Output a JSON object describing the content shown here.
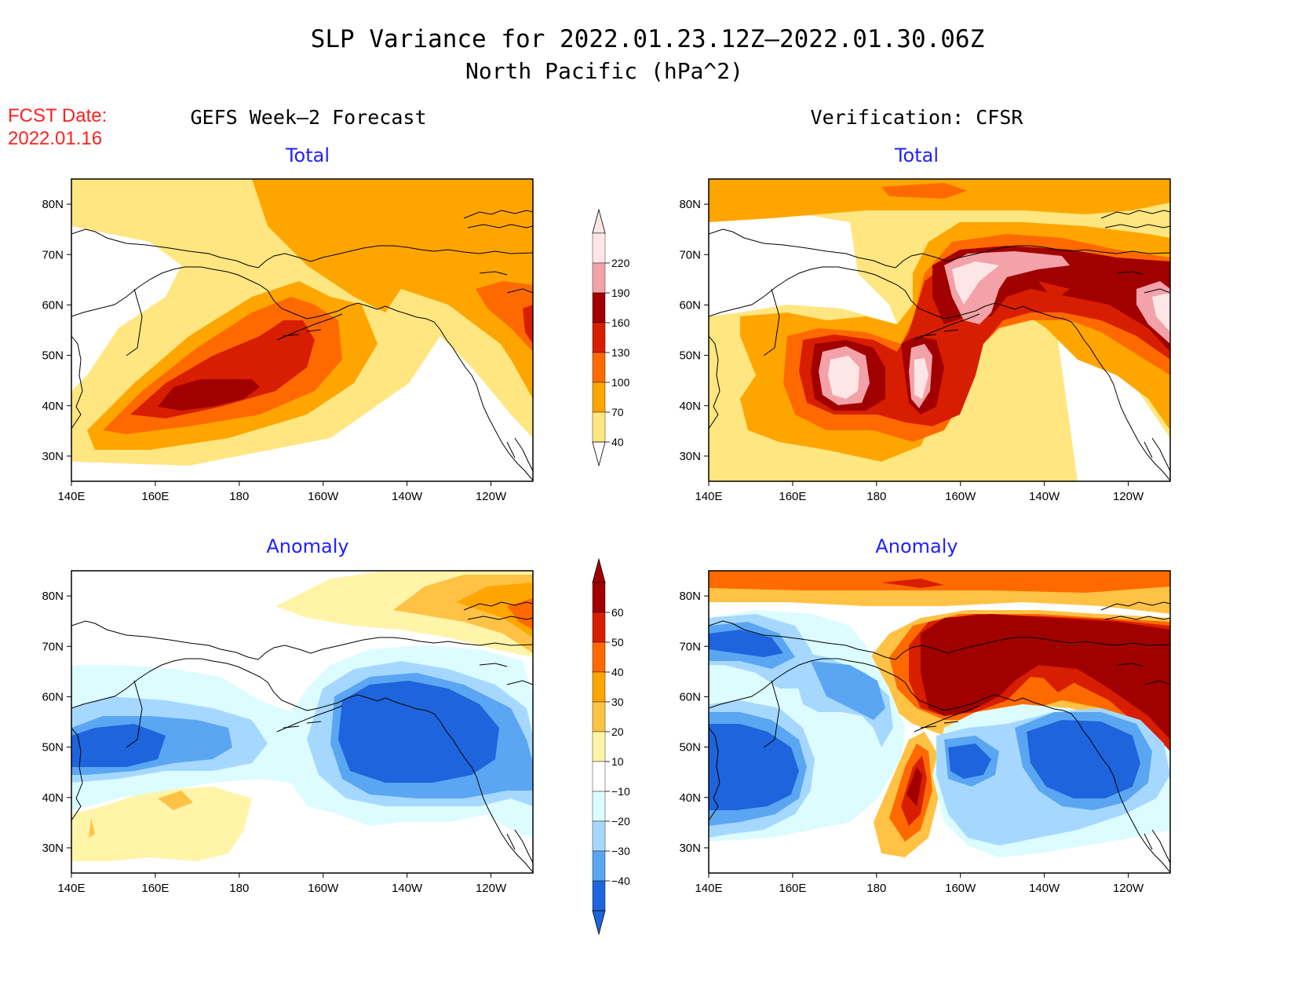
{
  "title": {
    "line1": "SLP Variance for 2022.01.23.12Z–2022.01.30.06Z",
    "line2": "North Pacific (hPa^2)"
  },
  "fcst": {
    "label": "FCST Date:",
    "date": "2022.01.16"
  },
  "columns": {
    "left": "GEFS Week–2 Forecast",
    "right": "Verification: CFSR"
  },
  "subtitles": {
    "total": "Total",
    "anomaly": "Anomaly"
  },
  "axes": {
    "lat_labels": [
      "80N",
      "70N",
      "60N",
      "50N",
      "40N",
      "30N"
    ],
    "lat_values": [
      80,
      70,
      60,
      50,
      40,
      30
    ],
    "lon_labels": [
      "140E",
      "160E",
      "180",
      "160W",
      "140W",
      "120W"
    ],
    "lon_values": [
      140,
      160,
      180,
      200,
      220,
      240
    ],
    "lon_range": [
      140,
      250
    ],
    "lat_range": [
      25,
      85
    ]
  },
  "colorbars": {
    "total": {
      "levels": [
        "220",
        "190",
        "160",
        "130",
        "100",
        "70",
        "40"
      ],
      "colors": [
        "#ffe6e6",
        "#f2a2a8",
        "#a10000",
        "#d81e00",
        "#ff6a00",
        "#ffa500",
        "#ffe680"
      ]
    },
    "anomaly": {
      "levels": [
        "60",
        "50",
        "40",
        "30",
        "20",
        "10",
        "−10",
        "−20",
        "−30",
        "−40"
      ],
      "colors": [
        "#a10000",
        "#d81e00",
        "#ff6a00",
        "#ffa500",
        "#ffc244",
        "#fff4a8",
        "#ffffff",
        "#dcfcff",
        "#a6d8ff",
        "#5aa6f2",
        "#1e64dc"
      ]
    }
  },
  "colors": {
    "title": "#000000",
    "fcst": "#ff2020",
    "subtitle": "#2020ff"
  }
}
